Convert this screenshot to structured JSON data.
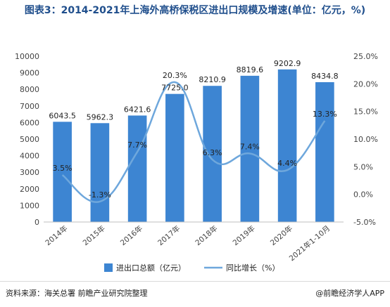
{
  "title": "图表3：2014-2021年上海外高桥保税区进出口规模及增速(单位：亿元，%)",
  "footer": {
    "source": "资料来源：海关总署 前瞻产业研究院整理",
    "brand": "@前瞻经济学人APP"
  },
  "chart_data": {
    "type": "bar",
    "categories": [
      "2014年",
      "2015年",
      "2016年",
      "2017年",
      "2018年",
      "2019年",
      "2020年",
      "2021年1-10月"
    ],
    "series": [
      {
        "name": "进出口总额（亿元）",
        "type": "bar",
        "axis": "left",
        "values": [
          6043.5,
          5962.3,
          6421.6,
          7725.0,
          8210.9,
          8819.6,
          9202.9,
          8434.8
        ],
        "labels": [
          "6043.5",
          "5962.3",
          "6421.6",
          "7725.0",
          "8210.9",
          "8819.6",
          "9202.9",
          "8434.8"
        ],
        "color": "#3d85d2"
      },
      {
        "name": "同比增长（%）",
        "type": "line",
        "axis": "right",
        "values": [
          3.5,
          -1.3,
          7.7,
          20.3,
          6.3,
          7.4,
          4.4,
          13.3
        ],
        "labels": [
          "3.5%",
          "-1.3%",
          "7.7%",
          "20.3%",
          "6.3%",
          "7.4%",
          "4.4%",
          "13.3%"
        ],
        "color": "#6ea7dc"
      }
    ],
    "y_left": {
      "min": 0,
      "max": 10000,
      "step": 1000,
      "ticks": [
        "0",
        "1000",
        "2000",
        "3000",
        "4000",
        "5000",
        "6000",
        "7000",
        "8000",
        "9000",
        "10000"
      ]
    },
    "y_right": {
      "min": -5,
      "max": 25,
      "step": 5,
      "ticks": [
        "-5.0%",
        "0.0%",
        "5.0%",
        "10.0%",
        "15.0%",
        "20.0%",
        "25.0%"
      ]
    },
    "legend_position": "bottom",
    "grid": false
  }
}
